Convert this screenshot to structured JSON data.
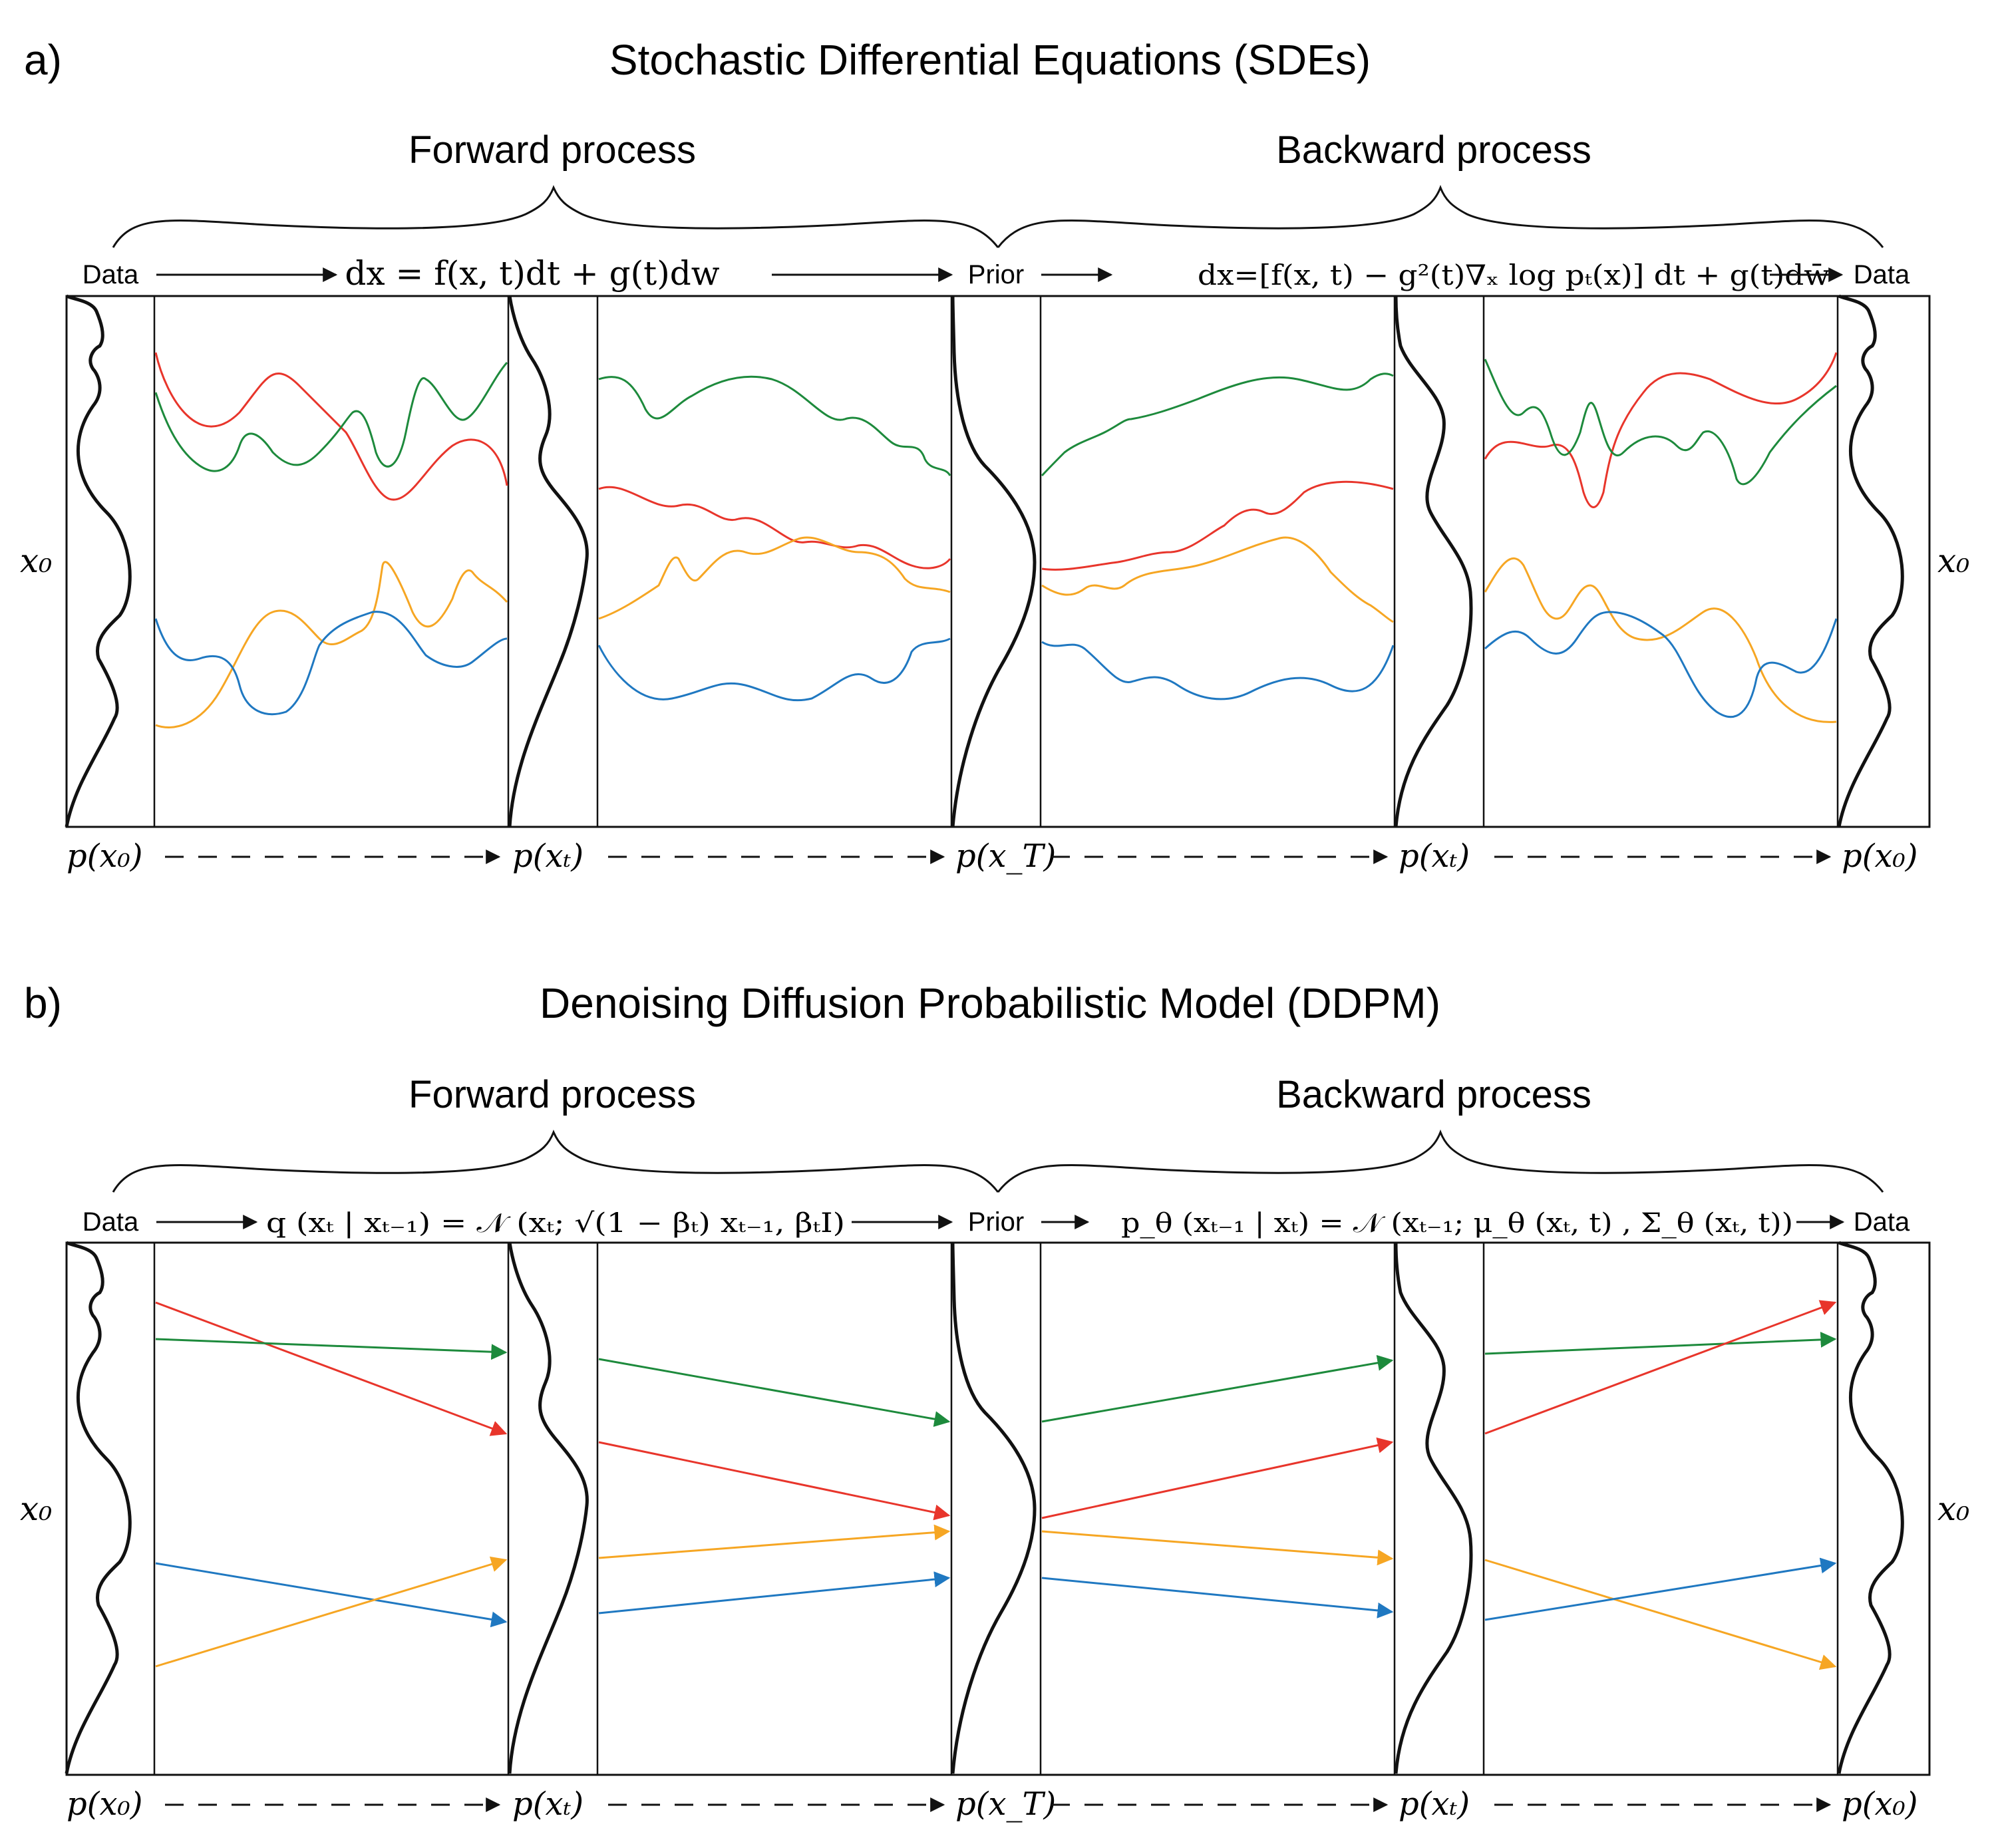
{
  "panels": [
    {
      "id": "sde",
      "letter": "a)",
      "title": "Stochastic Differential Equations (SDEs)",
      "forward_label": "Forward process",
      "backward_label": "Backward process",
      "data_left": "Data",
      "prior": "Prior",
      "data_right": "Data",
      "forward_eq": "dx = f(x, t)dt + g(t)dw",
      "backward_eq": "dx=[f(x, t) − g²(t)∇ₓ log pₜ(x)] dt + g(t)dw̄",
      "x_label": "x₀",
      "bottom_labels": [
        "p(x₀)",
        "p(xₜ)",
        "p(x_T)",
        "p(xₜ)",
        "p(x₀)"
      ]
    },
    {
      "id": "ddpm",
      "letter": "b)",
      "title": "Denoising Diffusion Probabilistic Model (DDPM)",
      "forward_label": "Forward process",
      "backward_label": "Backward process",
      "data_left": "Data",
      "prior": "Prior",
      "data_right": "Data",
      "forward_eq": "q (xₜ | xₜ₋₁) = 𝒩 (xₜ; √(1 − βₜ) xₜ₋₁, βₜI)",
      "backward_eq": "p_θ (xₜ₋₁ | xₜ) = 𝒩 (xₜ₋₁; μ_θ (xₜ, t) , Σ_θ (xₜ, t))",
      "x_label": "x₀",
      "bottom_labels": [
        "p(x₀)",
        "p(xₜ)",
        "p(x_T)",
        "p(xₜ)",
        "p(x₀)"
      ]
    }
  ],
  "colors": {
    "red": "#e8352b",
    "green": "#1d8a3c",
    "orange": "#f6a623",
    "blue": "#1f78c1",
    "ink": "#111111"
  }
}
